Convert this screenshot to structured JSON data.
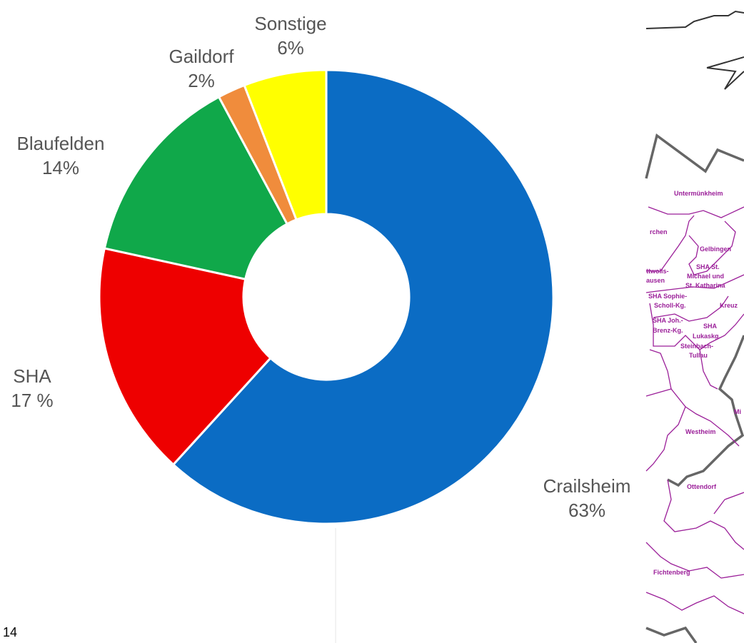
{
  "chart_data": {
    "type": "pie",
    "donut": true,
    "slices": [
      {
        "label": "Crailsheim",
        "value": 63,
        "value_text": "63%",
        "color": "#0b6cc4"
      },
      {
        "label": "SHA",
        "value": 17,
        "value_text": "17 %",
        "color": "#ee0000"
      },
      {
        "label": "Blaufelden",
        "value": 14,
        "value_text": "14%",
        "color": "#10a84a"
      },
      {
        "label": "Gaildorf",
        "value": 2,
        "value_text": "2%",
        "color": "#f08c3c"
      },
      {
        "label": "Sonstige",
        "value": 6,
        "value_text": "6%",
        "color": "#ffff00"
      }
    ],
    "legend": "none"
  },
  "page_number": "14",
  "map": {
    "places": [
      "Untermünkheim",
      "Gelbingen",
      "SHA St.",
      "Michael und",
      "St. Katharina",
      "SHA Sophie-",
      "Scholl-Kg.",
      "Kreuz",
      "SHA Joh.-",
      "Brenz-Kg.",
      "SHA",
      "Lukaskg.",
      "Steinbach-",
      "Tullau",
      "Westheim",
      "Ottendorf",
      "Fichtenberg",
      "rchen",
      "ttwolls-",
      "ausen",
      "Mi"
    ],
    "line_color": "#9b1f99",
    "border_color": "#666666"
  }
}
